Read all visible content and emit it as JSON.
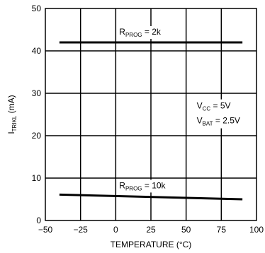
{
  "chart_data": {
    "type": "line",
    "xlabel": "TEMPERATURE (°C)",
    "ylabel": {
      "main": "I",
      "sub": "TRIKL",
      "tail": " (mA)"
    },
    "xlim": [
      -50,
      100
    ],
    "ylim": [
      0,
      50
    ],
    "x_ticks": [
      -50,
      -25,
      0,
      25,
      50,
      75,
      100
    ],
    "y_ticks": [
      0,
      10,
      20,
      30,
      40,
      50
    ],
    "grid": true,
    "series": [
      {
        "name": "RPROG = 2k",
        "label": {
          "main": "R",
          "sub": "PROG",
          "tail": " = 2k"
        },
        "x": [
          -40,
          90
        ],
        "y": [
          42,
          42
        ]
      },
      {
        "name": "RPROG = 10k",
        "label": {
          "main": "R",
          "sub": "PROG",
          "tail": " = 10k"
        },
        "x": [
          -40,
          90
        ],
        "y": [
          6.1,
          5.0
        ]
      }
    ],
    "annotations": [
      {
        "main": "V",
        "sub": "CC",
        "tail": " = 5V"
      },
      {
        "main": "V",
        "sub": "BAT",
        "tail": " = 2.5V"
      }
    ]
  }
}
